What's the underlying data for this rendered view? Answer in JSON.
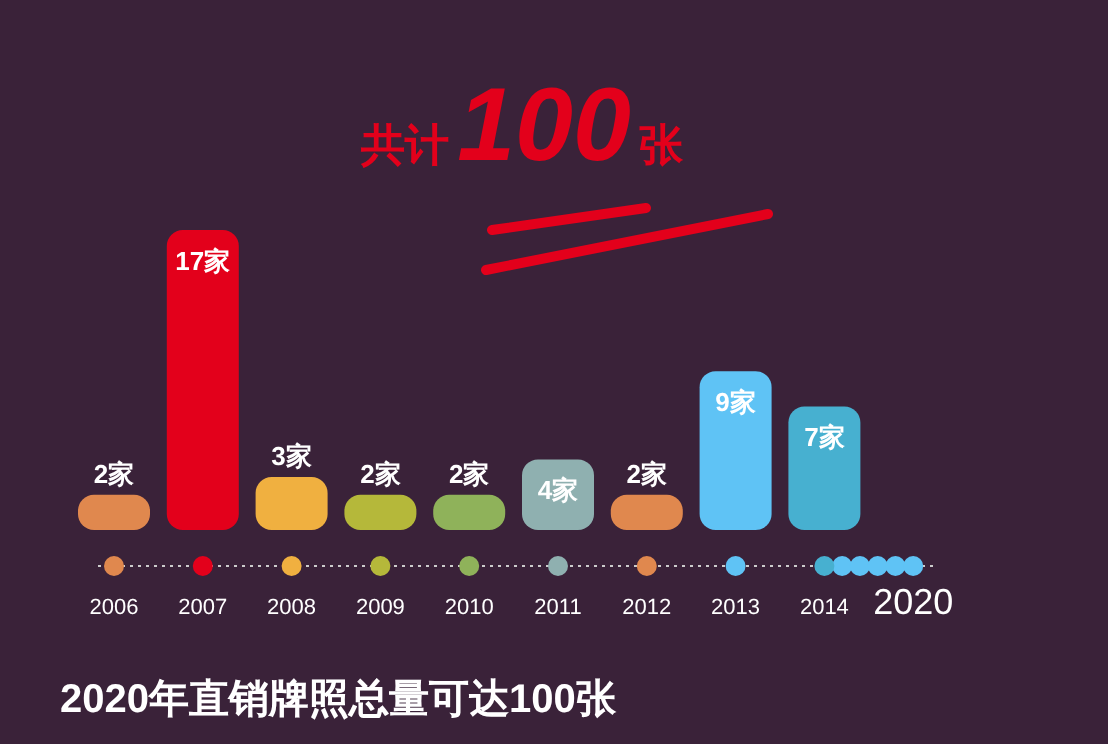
{
  "chart_data": {
    "type": "bar",
    "title": "共计100张",
    "categories": [
      "2006",
      "2007",
      "2008",
      "2009",
      "2010",
      "2011",
      "2012",
      "2013",
      "2014",
      "2020"
    ],
    "values": [
      2,
      17,
      3,
      2,
      2,
      4,
      2,
      9,
      7,
      null
    ],
    "colors": [
      "#e0884e",
      "#e3001b",
      "#f0b040",
      "#b5b83a",
      "#8fb25a",
      "#8fb0b0",
      "#e0884e",
      "#5fc3f5",
      "#47b0d0",
      "#5fc3f5"
    ],
    "value_labels": [
      "2家",
      "17家",
      "3家",
      "2家",
      "2家",
      "4家",
      "2家",
      "9家",
      "7家",
      null
    ],
    "annotations": [
      "2020年直销牌照总量可达100张"
    ],
    "grid": false
  }
}
